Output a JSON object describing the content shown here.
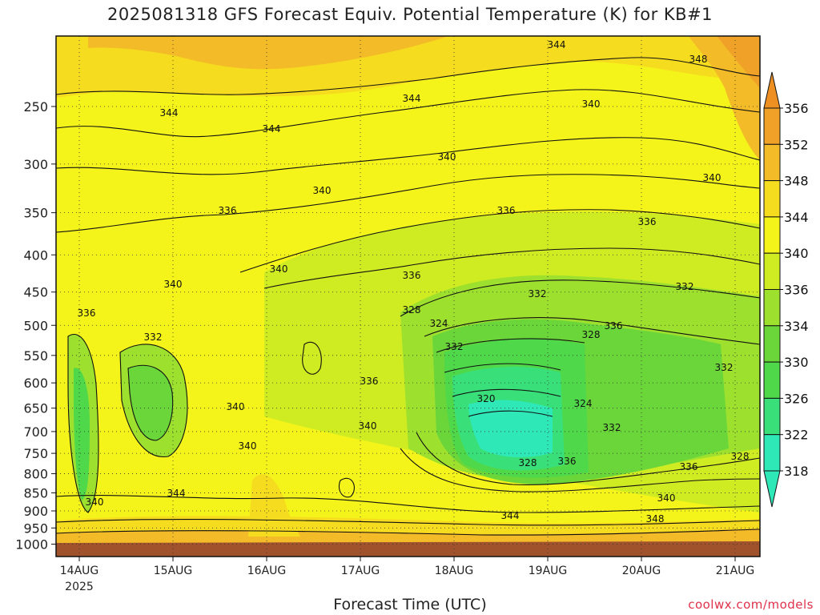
{
  "chart_data": {
    "type": "heatmap",
    "title": "2025081318 GFS Forecast Equiv. Potential Temperature (K) for KB#1",
    "xlabel": "Forecast Time (UTC)",
    "ylabel": "",
    "credit": "coolwx.com/models",
    "y_axis": {
      "ticks": [
        250,
        300,
        350,
        400,
        450,
        500,
        550,
        600,
        650,
        700,
        750,
        800,
        850,
        900,
        950,
        1000
      ],
      "scale": "log",
      "inverted": true
    },
    "x_axis": {
      "ticks": [
        "14AUG",
        "15AUG",
        "16AUG",
        "17AUG",
        "18AUG",
        "19AUG",
        "20AUG",
        "21AUG"
      ],
      "year_label": "2025"
    },
    "colorbar": {
      "levels": [
        318,
        322,
        326,
        330,
        334,
        336,
        340,
        344,
        348,
        352,
        356
      ],
      "colors": [
        "#2ee8b8",
        "#39e07a",
        "#4fd84a",
        "#6ad63a",
        "#9ee02e",
        "#cfec22",
        "#f4f41a",
        "#f6dc1e",
        "#f3bb28",
        "#f0a228",
        "#ee8f22"
      ]
    },
    "contour_labels": [
      "344",
      "348",
      "344",
      "344",
      "344",
      "340",
      "340",
      "340",
      "340",
      "336",
      "336",
      "336",
      "340",
      "340",
      "336",
      "332",
      "332",
      "328",
      "324",
      "336",
      "336",
      "332",
      "328",
      "332",
      "320",
      "324",
      "332",
      "340",
      "340",
      "340",
      "336",
      "328",
      "336",
      "332",
      "328",
      "336",
      "340",
      "340",
      "344",
      "344",
      "348"
    ],
    "grid": true
  }
}
